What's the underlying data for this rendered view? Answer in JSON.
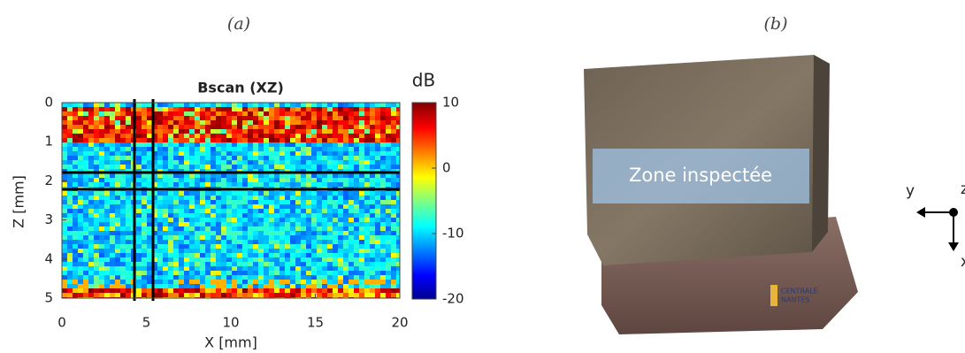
{
  "panel_a": {
    "label": "(a)",
    "title": "Bscan (XZ)",
    "x_axis": {
      "label": "X [mm]",
      "lim": [
        0,
        20
      ],
      "ticks": [
        0,
        5,
        10,
        15,
        20
      ]
    },
    "z_axis": {
      "label": "Z [mm]",
      "lim": [
        0,
        5
      ],
      "ticks": [
        0,
        1,
        2,
        3,
        4,
        5
      ]
    },
    "colorbar": {
      "label": "dB",
      "lim": [
        -20,
        10
      ],
      "ticks": [
        10,
        0,
        -10,
        -20
      ]
    }
  },
  "panel_b": {
    "label": "(b)",
    "annotation": "Zone inspectée",
    "logo": [
      "CENTRALE",
      "NANTES"
    ],
    "axes": {
      "y": "y",
      "z": "z",
      "x": "x"
    }
  }
}
